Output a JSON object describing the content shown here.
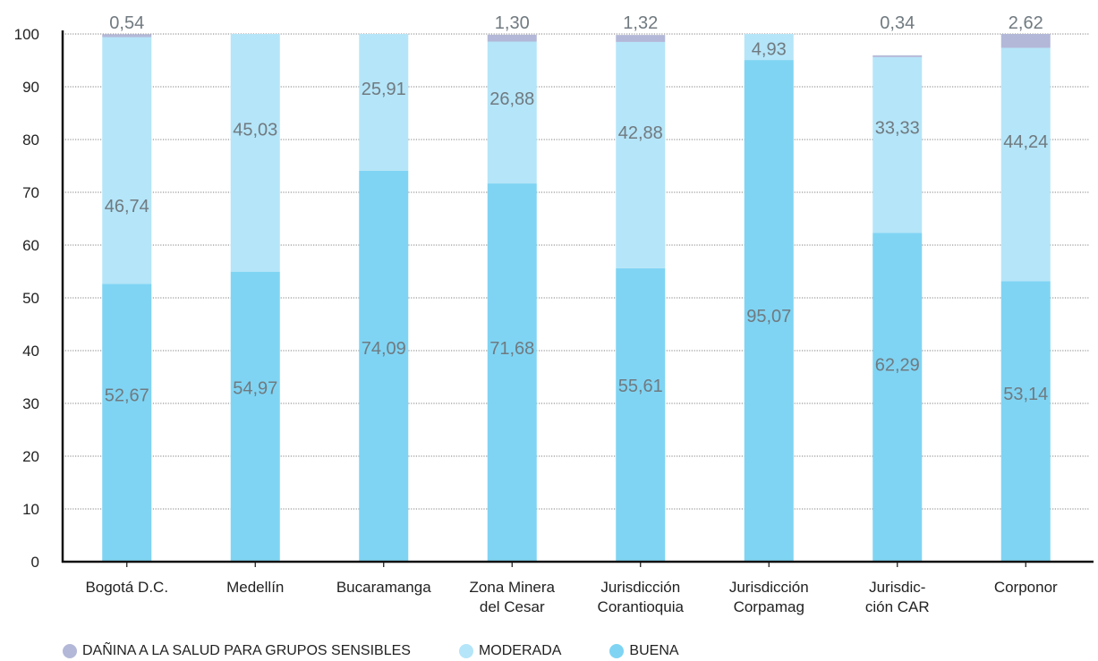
{
  "chart_data": {
    "type": "bar",
    "stacked": true,
    "categories": [
      [
        "Bogotá D.C."
      ],
      [
        "Medellín"
      ],
      [
        "Bucaramanga"
      ],
      [
        "Zona Minera",
        "del Cesar"
      ],
      [
        "Jurisdicción",
        "Corantioquia"
      ],
      [
        "Jurisdicción",
        "Corpamag"
      ],
      [
        "Jurisdic-",
        "ción CAR"
      ],
      [
        "Corponor"
      ]
    ],
    "series": [
      {
        "name": "BUENA",
        "color": "#7fd4f3",
        "values": [
          52.67,
          54.97,
          74.09,
          71.68,
          55.61,
          95.07,
          62.29,
          53.14
        ],
        "labels": [
          "52,67",
          "54,97",
          "74,09",
          "71,68",
          "55,61",
          "95,07",
          "62,29",
          "53,14"
        ]
      },
      {
        "name": "MODERADA",
        "color": "#b5e5f8",
        "values": [
          46.74,
          45.03,
          25.91,
          26.88,
          42.88,
          4.93,
          33.33,
          44.24
        ],
        "labels": [
          "46,74",
          "45,03",
          "25,91",
          "26,88",
          "42,88",
          "4,93",
          "33,33",
          "44,24"
        ]
      },
      {
        "name": "DAÑINA A LA SALUD PARA GRUPOS SENSIBLES",
        "color": "#b3b8d8",
        "values": [
          0.54,
          0,
          0,
          1.3,
          1.32,
          0,
          0.34,
          2.62
        ],
        "labels": [
          "0,54",
          "",
          "",
          "1,30",
          "1,32",
          "",
          "0,34",
          "2,62"
        ]
      }
    ],
    "ylim": [
      0,
      100
    ],
    "yticks": [
      0,
      10,
      20,
      30,
      40,
      50,
      60,
      70,
      80,
      90,
      100
    ],
    "grid": true,
    "legend_position": "bottom",
    "legend_order": [
      "DAÑINA A LA SALUD PARA GRUPOS SENSIBLES",
      "MODERADA",
      "BUENA"
    ]
  }
}
